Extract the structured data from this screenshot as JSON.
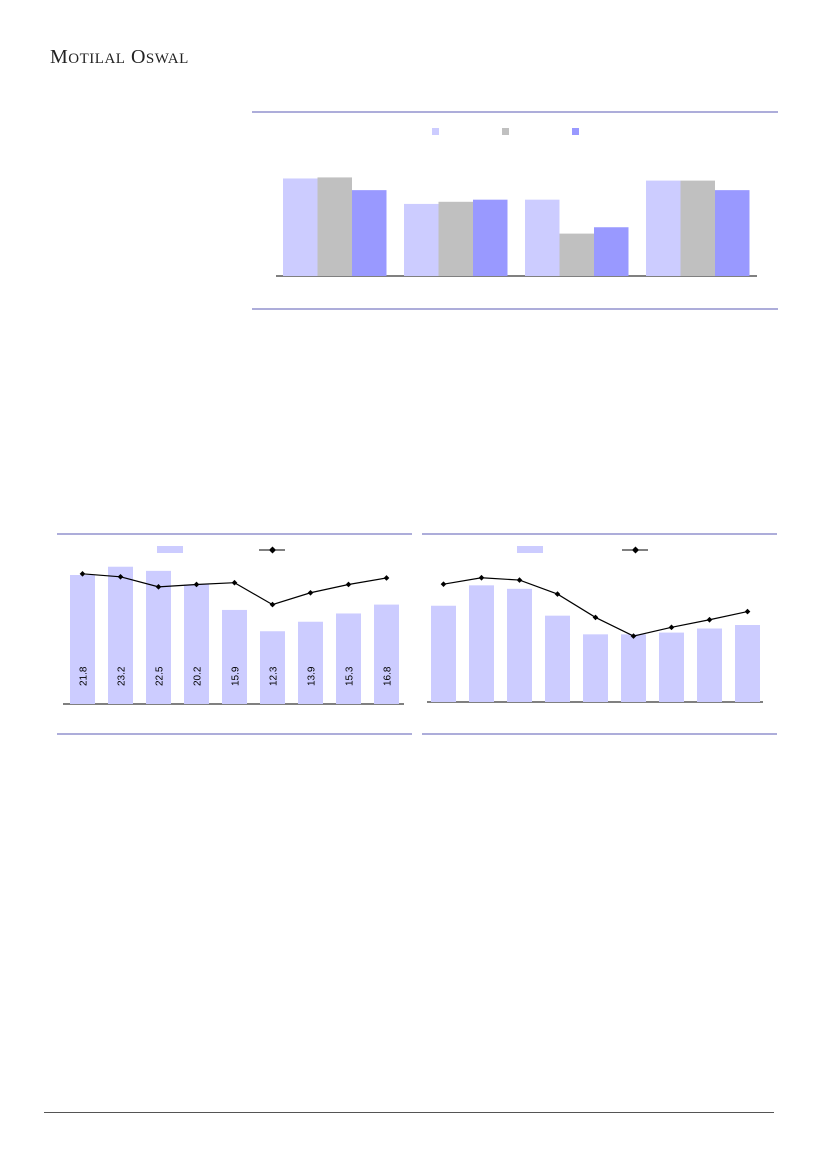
{
  "brand": {
    "first_cap": "M",
    "first_rest": "OTILAL",
    "second_cap": "O",
    "second_rest": "SWAL"
  },
  "colors": {
    "rule": "#5b5bb4",
    "bar_light": "#ccccff",
    "bar_grey": "#c0c0c0",
    "bar_mid": "#9999ff",
    "line": "#000000"
  },
  "chart_data": [
    {
      "type": "bar",
      "categories": [
        "",
        "",
        "",
        ""
      ],
      "series": [
        {
          "values": [
            92,
            68,
            72,
            90
          ]
        },
        {
          "values": [
            93,
            70,
            40,
            90
          ]
        },
        {
          "values": [
            81,
            72,
            46,
            81
          ]
        }
      ],
      "ylim": [
        0,
        100
      ],
      "legend": "top",
      "grid": false
    },
    {
      "type": "bar",
      "categories": [
        "",
        "",
        "",
        "",
        "",
        "",
        "",
        "",
        ""
      ],
      "bar_values": [
        21.8,
        23.2,
        22.5,
        20.2,
        15.9,
        12.3,
        13.9,
        15.3,
        16.8
      ],
      "data_labels": [
        "21.8",
        "23.2",
        "22.5",
        "20.2",
        "15.9",
        "12.3",
        "13.9",
        "15.3",
        "16.8"
      ],
      "line_values": [
        22.0,
        21.5,
        19.8,
        20.2,
        20.5,
        16.8,
        18.8,
        20.2,
        21.3
      ],
      "ylim": [
        0,
        24
      ],
      "legend": "top",
      "grid": false
    },
    {
      "type": "bar",
      "categories": [
        "",
        "",
        "",
        "",
        "",
        "",
        "",
        "",
        ""
      ],
      "bar_values": [
        16.5,
        20.0,
        19.4,
        14.8,
        11.6,
        11.6,
        11.9,
        12.6,
        13.2
      ],
      "line_values": [
        20.2,
        21.3,
        20.9,
        18.5,
        14.5,
        11.3,
        12.8,
        14.1,
        15.5
      ],
      "ylim": [
        0,
        24
      ],
      "legend": "top",
      "grid": false
    }
  ]
}
